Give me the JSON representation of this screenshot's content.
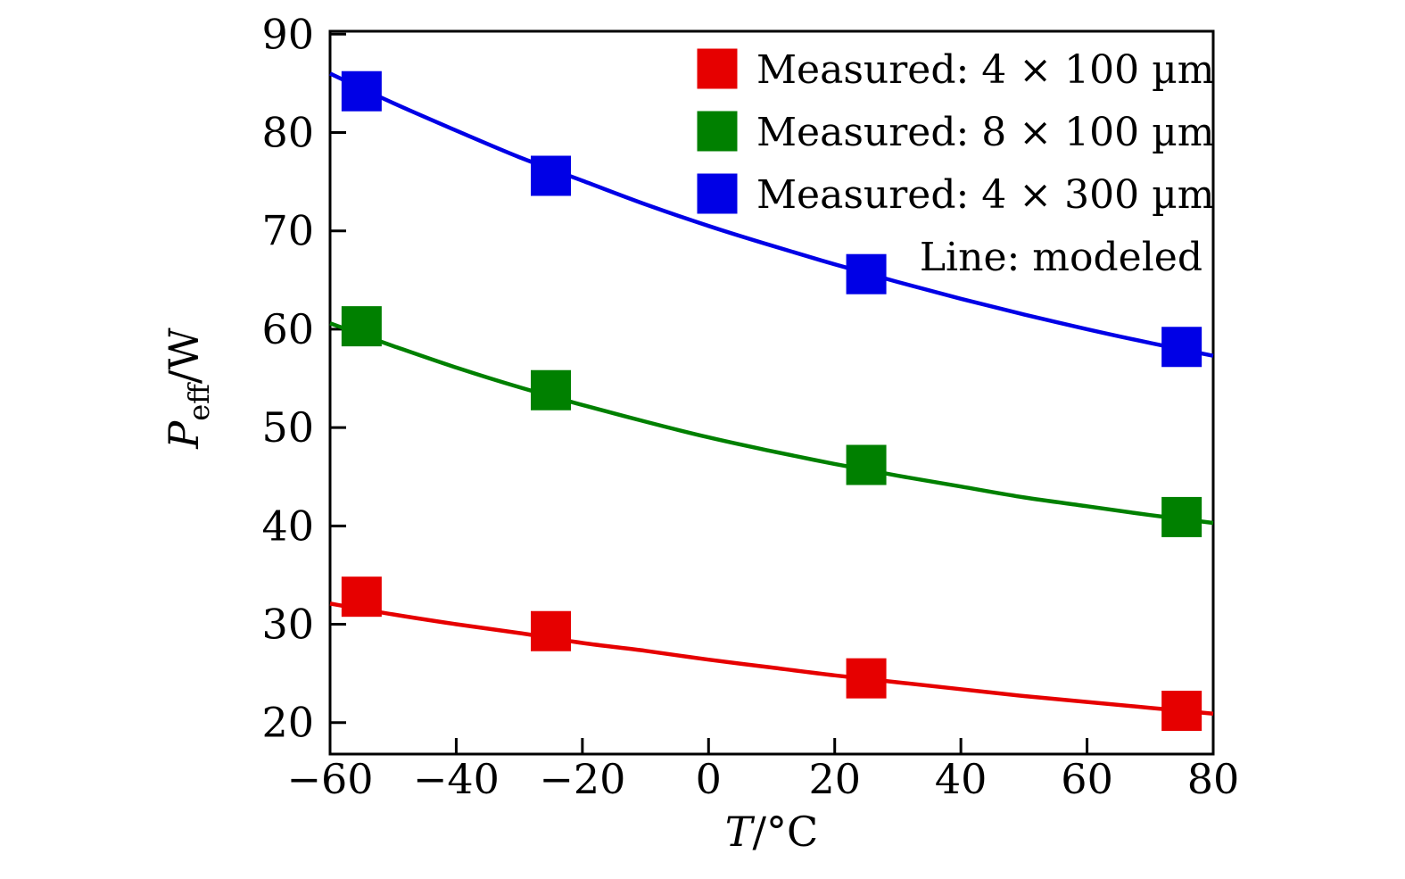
{
  "figure": {
    "background": "#ffffff",
    "axis_color": "#000000"
  },
  "chart_data": {
    "type": "line",
    "title": "",
    "xlabel": "T/°C",
    "ylabel": "P_eff/W",
    "xlabel_parts": {
      "symbol": "T",
      "unit": "°C"
    },
    "ylabel_parts": {
      "symbol": "P",
      "subscript": "eff",
      "unit": "W"
    },
    "xlim": [
      -60,
      80
    ],
    "ylim": [
      16.8,
      90.3
    ],
    "xticks": [
      -60,
      -40,
      -20,
      0,
      20,
      40,
      60,
      80
    ],
    "yticks": [
      20,
      30,
      40,
      50,
      60,
      70,
      80,
      90
    ],
    "grid": false,
    "legend": {
      "position": "upper-right",
      "frame": false,
      "note": "Line: modeled"
    },
    "modeled_x": [
      -60,
      -50,
      -40,
      -30,
      -20,
      -10,
      0,
      10,
      20,
      30,
      40,
      50,
      60,
      70,
      80
    ],
    "series": [
      {
        "label": "Measured: 4 × 100 µm",
        "color": "#e60000",
        "marker": "square",
        "measured_x": [
          -55,
          -25,
          25,
          75
        ],
        "measured_y": [
          32.8,
          29.3,
          24.5,
          21.2
        ],
        "modeled_y": [
          32.1,
          31.0,
          30.0,
          29.1,
          28.1,
          27.3,
          26.4,
          25.6,
          24.8,
          24.1,
          23.4,
          22.7,
          22.1,
          21.5,
          20.9
        ]
      },
      {
        "label": "Measured: 8 × 100 µm",
        "color": "#008000",
        "marker": "square",
        "measured_x": [
          -55,
          -25,
          25,
          75
        ],
        "measured_y": [
          60.3,
          53.8,
          46.2,
          40.9
        ],
        "modeled_y": [
          60.6,
          58.3,
          56.1,
          54.1,
          52.3,
          50.6,
          49.0,
          47.6,
          46.3,
          45.1,
          44.0,
          42.9,
          42.0,
          41.1,
          40.3
        ]
      },
      {
        "label": "Measured: 4 × 300 µm",
        "color": "#0000e6",
        "marker": "square",
        "measured_x": [
          -55,
          -25,
          25,
          75
        ],
        "measured_y": [
          84.2,
          75.6,
          65.6,
          58.2
        ],
        "modeled_y": [
          86.0,
          83.0,
          80.2,
          77.5,
          75.1,
          72.7,
          70.5,
          68.5,
          66.6,
          64.8,
          63.1,
          61.5,
          60.0,
          58.6,
          57.3
        ]
      }
    ]
  }
}
